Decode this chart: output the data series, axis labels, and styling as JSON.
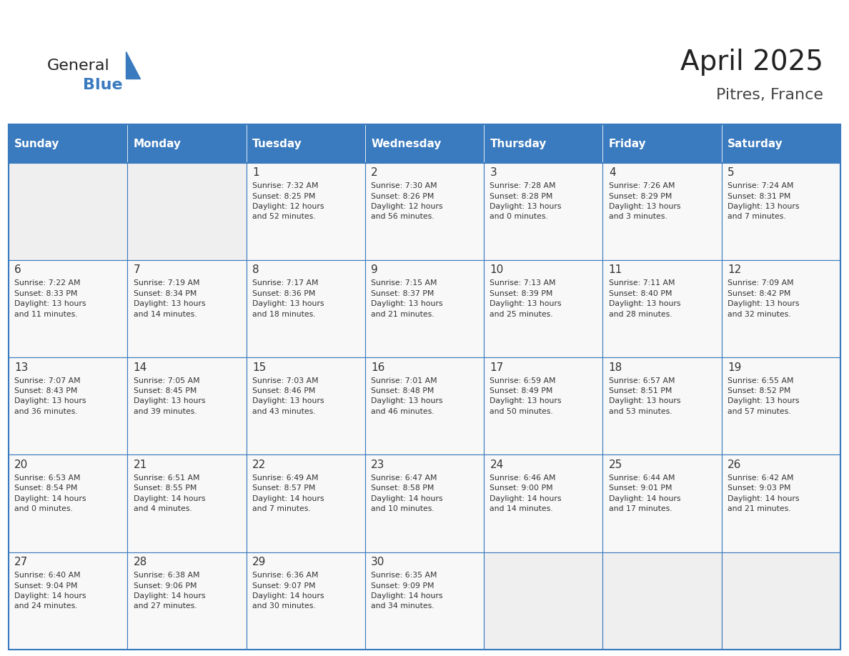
{
  "title": "April 2025",
  "subtitle": "Pitres, France",
  "header_color": "#3a7abf",
  "header_text_color": "#ffffff",
  "cell_bg_color": "#f2f2f2",
  "border_color": "#3a7abf",
  "text_color": "#333333",
  "days_of_week": [
    "Sunday",
    "Monday",
    "Tuesday",
    "Wednesday",
    "Thursday",
    "Friday",
    "Saturday"
  ],
  "weeks": [
    [
      {
        "day": "",
        "text": ""
      },
      {
        "day": "",
        "text": ""
      },
      {
        "day": "1",
        "text": "Sunrise: 7:32 AM\nSunset: 8:25 PM\nDaylight: 12 hours\nand 52 minutes."
      },
      {
        "day": "2",
        "text": "Sunrise: 7:30 AM\nSunset: 8:26 PM\nDaylight: 12 hours\nand 56 minutes."
      },
      {
        "day": "3",
        "text": "Sunrise: 7:28 AM\nSunset: 8:28 PM\nDaylight: 13 hours\nand 0 minutes."
      },
      {
        "day": "4",
        "text": "Sunrise: 7:26 AM\nSunset: 8:29 PM\nDaylight: 13 hours\nand 3 minutes."
      },
      {
        "day": "5",
        "text": "Sunrise: 7:24 AM\nSunset: 8:31 PM\nDaylight: 13 hours\nand 7 minutes."
      }
    ],
    [
      {
        "day": "6",
        "text": "Sunrise: 7:22 AM\nSunset: 8:33 PM\nDaylight: 13 hours\nand 11 minutes."
      },
      {
        "day": "7",
        "text": "Sunrise: 7:19 AM\nSunset: 8:34 PM\nDaylight: 13 hours\nand 14 minutes."
      },
      {
        "day": "8",
        "text": "Sunrise: 7:17 AM\nSunset: 8:36 PM\nDaylight: 13 hours\nand 18 minutes."
      },
      {
        "day": "9",
        "text": "Sunrise: 7:15 AM\nSunset: 8:37 PM\nDaylight: 13 hours\nand 21 minutes."
      },
      {
        "day": "10",
        "text": "Sunrise: 7:13 AM\nSunset: 8:39 PM\nDaylight: 13 hours\nand 25 minutes."
      },
      {
        "day": "11",
        "text": "Sunrise: 7:11 AM\nSunset: 8:40 PM\nDaylight: 13 hours\nand 28 minutes."
      },
      {
        "day": "12",
        "text": "Sunrise: 7:09 AM\nSunset: 8:42 PM\nDaylight: 13 hours\nand 32 minutes."
      }
    ],
    [
      {
        "day": "13",
        "text": "Sunrise: 7:07 AM\nSunset: 8:43 PM\nDaylight: 13 hours\nand 36 minutes."
      },
      {
        "day": "14",
        "text": "Sunrise: 7:05 AM\nSunset: 8:45 PM\nDaylight: 13 hours\nand 39 minutes."
      },
      {
        "day": "15",
        "text": "Sunrise: 7:03 AM\nSunset: 8:46 PM\nDaylight: 13 hours\nand 43 minutes."
      },
      {
        "day": "16",
        "text": "Sunrise: 7:01 AM\nSunset: 8:48 PM\nDaylight: 13 hours\nand 46 minutes."
      },
      {
        "day": "17",
        "text": "Sunrise: 6:59 AM\nSunset: 8:49 PM\nDaylight: 13 hours\nand 50 minutes."
      },
      {
        "day": "18",
        "text": "Sunrise: 6:57 AM\nSunset: 8:51 PM\nDaylight: 13 hours\nand 53 minutes."
      },
      {
        "day": "19",
        "text": "Sunrise: 6:55 AM\nSunset: 8:52 PM\nDaylight: 13 hours\nand 57 minutes."
      }
    ],
    [
      {
        "day": "20",
        "text": "Sunrise: 6:53 AM\nSunset: 8:54 PM\nDaylight: 14 hours\nand 0 minutes."
      },
      {
        "day": "21",
        "text": "Sunrise: 6:51 AM\nSunset: 8:55 PM\nDaylight: 14 hours\nand 4 minutes."
      },
      {
        "day": "22",
        "text": "Sunrise: 6:49 AM\nSunset: 8:57 PM\nDaylight: 14 hours\nand 7 minutes."
      },
      {
        "day": "23",
        "text": "Sunrise: 6:47 AM\nSunset: 8:58 PM\nDaylight: 14 hours\nand 10 minutes."
      },
      {
        "day": "24",
        "text": "Sunrise: 6:46 AM\nSunset: 9:00 PM\nDaylight: 14 hours\nand 14 minutes."
      },
      {
        "day": "25",
        "text": "Sunrise: 6:44 AM\nSunset: 9:01 PM\nDaylight: 14 hours\nand 17 minutes."
      },
      {
        "day": "26",
        "text": "Sunrise: 6:42 AM\nSunset: 9:03 PM\nDaylight: 14 hours\nand 21 minutes."
      }
    ],
    [
      {
        "day": "27",
        "text": "Sunrise: 6:40 AM\nSunset: 9:04 PM\nDaylight: 14 hours\nand 24 minutes."
      },
      {
        "day": "28",
        "text": "Sunrise: 6:38 AM\nSunset: 9:06 PM\nDaylight: 14 hours\nand 27 minutes."
      },
      {
        "day": "29",
        "text": "Sunrise: 6:36 AM\nSunset: 9:07 PM\nDaylight: 14 hours\nand 30 minutes."
      },
      {
        "day": "30",
        "text": "Sunrise: 6:35 AM\nSunset: 9:09 PM\nDaylight: 14 hours\nand 34 minutes."
      },
      {
        "day": "",
        "text": ""
      },
      {
        "day": "",
        "text": ""
      },
      {
        "day": "",
        "text": ""
      }
    ]
  ]
}
